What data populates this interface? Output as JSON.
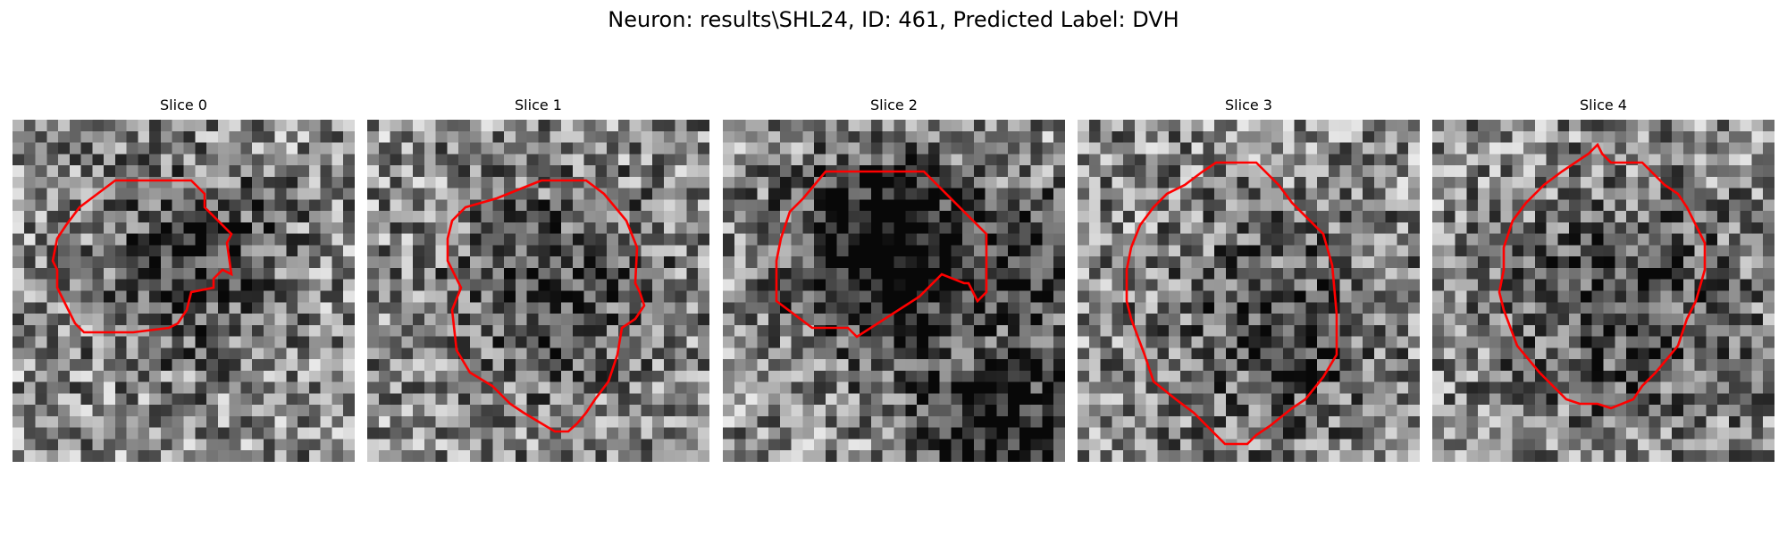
{
  "figure": {
    "title": "Neuron: results\\SHL24, ID: 461, Predicted Label: DVH"
  },
  "panels": [
    {
      "title": "Slice 0",
      "outline_color": "#ff0000"
    },
    {
      "title": "Slice 1",
      "outline_color": "#ff0000"
    },
    {
      "title": "Slice 2",
      "outline_color": "#ff0000"
    },
    {
      "title": "Slice 3",
      "outline_color": "#ff0000"
    },
    {
      "title": "Slice 4",
      "outline_color": "#ff0000"
    }
  ]
}
